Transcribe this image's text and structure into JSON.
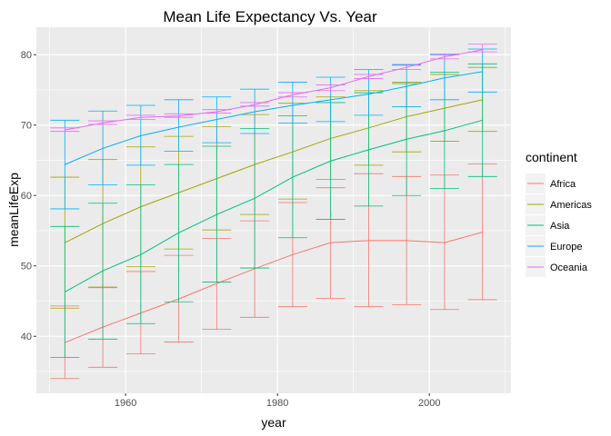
{
  "chart_data": {
    "type": "line",
    "title": "Mean Life Expectancy Vs. Year",
    "xlabel": "year",
    "ylabel": "meanLifeExp",
    "xlim": [
      1948.25,
      2010.75
    ],
    "ylim": [
      31.9,
      83.9
    ],
    "xticks": [
      1960,
      1980,
      2000
    ],
    "yticks": [
      40,
      50,
      60,
      70,
      80
    ],
    "grid": true,
    "error_bars": true,
    "legend": {
      "title": "continent",
      "position": "right"
    },
    "x": [
      1952,
      1957,
      1962,
      1967,
      1972,
      1977,
      1982,
      1987,
      1992,
      1997,
      2002,
      2007
    ],
    "series": [
      {
        "name": "Africa",
        "color": "#F8766D",
        "values": [
          39.1,
          41.3,
          43.3,
          45.3,
          47.5,
          49.6,
          51.6,
          53.3,
          53.6,
          53.6,
          53.3,
          54.8
        ],
        "lower": [
          34.0,
          35.6,
          37.5,
          39.2,
          41.0,
          42.7,
          44.2,
          45.4,
          44.2,
          44.5,
          43.8,
          45.2
        ],
        "upper": [
          44.3,
          46.9,
          49.2,
          51.5,
          53.9,
          56.4,
          59.0,
          61.1,
          63.1,
          62.7,
          62.9,
          64.5
        ]
      },
      {
        "name": "Americas",
        "color": "#A3A500",
        "values": [
          53.3,
          56.0,
          58.4,
          60.4,
          62.4,
          64.4,
          66.2,
          68.1,
          69.6,
          71.2,
          72.4,
          73.6
        ],
        "lower": [
          44.0,
          47.0,
          49.9,
          52.4,
          55.1,
          57.3,
          59.5,
          62.3,
          64.3,
          66.2,
          67.7,
          69.1
        ],
        "upper": [
          62.6,
          65.1,
          66.9,
          68.4,
          69.8,
          71.5,
          73.1,
          74.0,
          74.9,
          76.1,
          77.2,
          78.2
        ]
      },
      {
        "name": "Asia",
        "color": "#00BF7D",
        "values": [
          46.3,
          49.3,
          51.6,
          54.7,
          57.3,
          59.6,
          62.6,
          64.9,
          66.5,
          68.0,
          69.2,
          70.7
        ],
        "lower": [
          37.0,
          39.6,
          41.8,
          44.9,
          47.7,
          49.7,
          54.0,
          56.6,
          58.5,
          60.0,
          61.0,
          62.7
        ],
        "upper": [
          55.6,
          58.9,
          61.5,
          64.4,
          67.0,
          69.5,
          71.3,
          73.2,
          74.6,
          75.9,
          77.5,
          78.7
        ]
      },
      {
        "name": "Europe",
        "color": "#00B0F6",
        "values": [
          64.4,
          66.7,
          68.5,
          69.7,
          70.8,
          71.9,
          72.8,
          73.6,
          74.4,
          75.5,
          76.7,
          77.6
        ],
        "lower": [
          58.1,
          61.5,
          64.3,
          66.3,
          67.5,
          68.8,
          70.3,
          70.5,
          71.4,
          72.6,
          73.6,
          74.7
        ],
        "upper": [
          70.7,
          72.0,
          72.8,
          73.6,
          74.0,
          75.1,
          76.1,
          76.8,
          77.9,
          78.6,
          80.0,
          80.8
        ]
      },
      {
        "name": "Oceania",
        "color": "#E76BF3",
        "values": [
          69.3,
          70.3,
          71.1,
          71.3,
          71.9,
          72.9,
          74.3,
          75.3,
          76.9,
          78.2,
          79.7,
          80.7
        ],
        "lower": [
          69.1,
          70.1,
          70.8,
          71.1,
          71.7,
          72.7,
          74.0,
          74.9,
          76.6,
          77.9,
          79.4,
          80.4
        ],
        "upper": [
          69.6,
          70.6,
          71.4,
          71.6,
          72.2,
          73.2,
          74.6,
          75.7,
          77.2,
          78.5,
          80.1,
          81.5
        ]
      }
    ]
  }
}
